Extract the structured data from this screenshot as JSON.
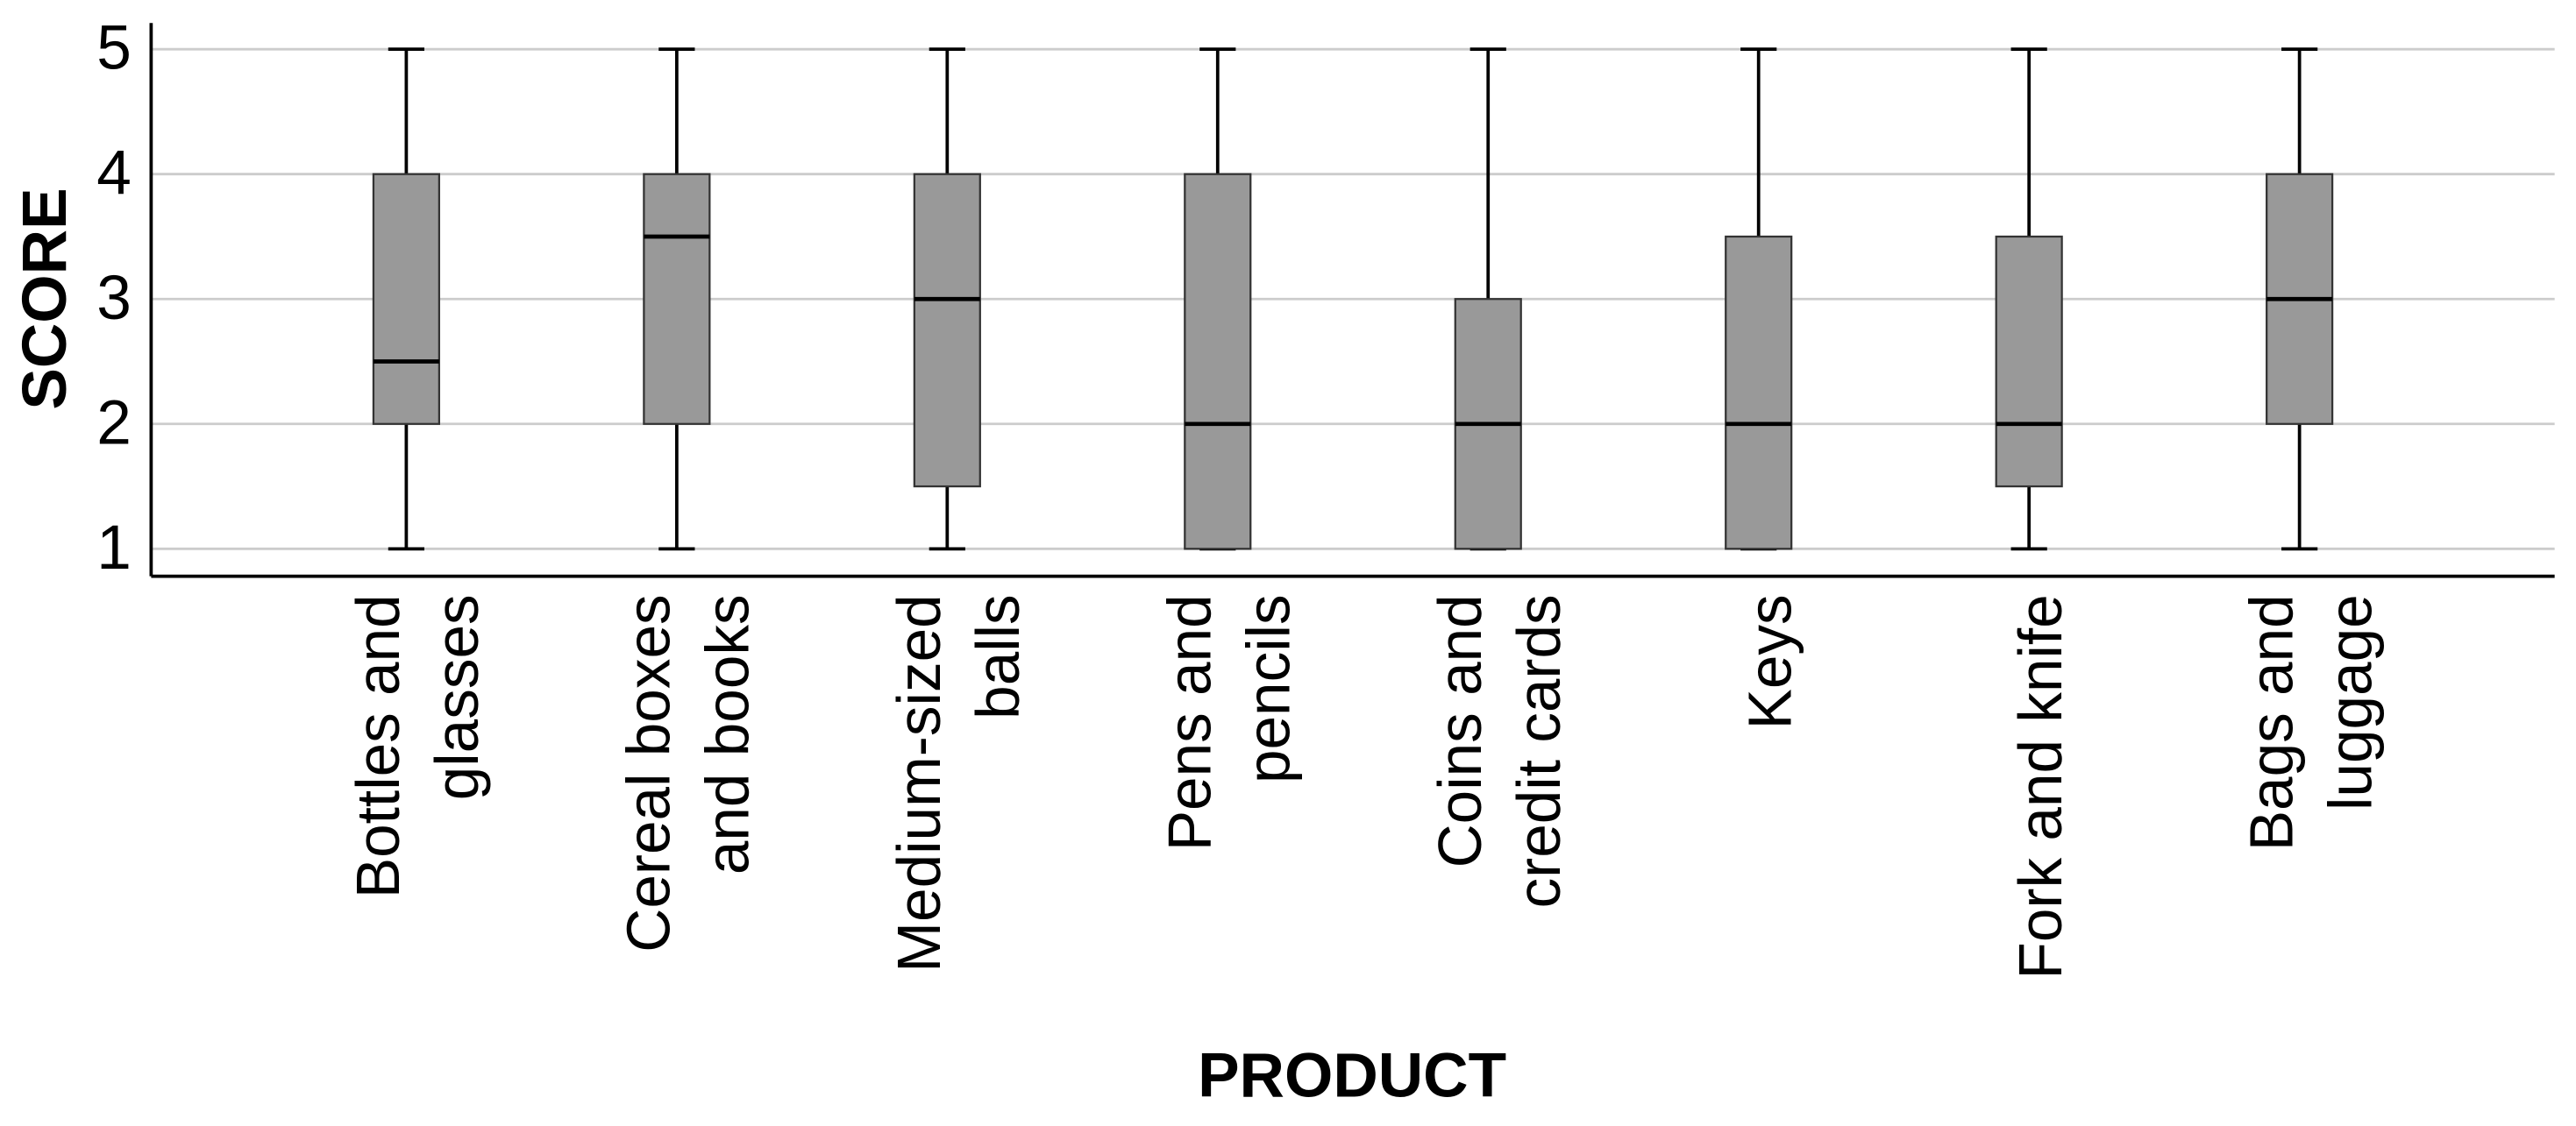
{
  "chart_data": {
    "type": "box",
    "categories": [
      "Bottles and\nglasses",
      "Cereal boxes\nand books",
      "Medium-sized\nballs",
      "Pens and\npencils",
      "Coins and\ncredit cards",
      "Keys",
      "Fork and knife",
      "Bags and\nluggage"
    ],
    "min": [
      1,
      1,
      1,
      1,
      1,
      1,
      1,
      1
    ],
    "q1": [
      2,
      2,
      1.5,
      1,
      1,
      1,
      1.5,
      2
    ],
    "median": [
      2.5,
      3.5,
      3,
      2,
      2,
      2,
      2,
      3
    ],
    "q3": [
      4,
      4,
      4,
      4,
      3,
      3.5,
      3.5,
      4
    ],
    "max": [
      5,
      5,
      5,
      5,
      5,
      5,
      5,
      5
    ],
    "color": "#999999",
    "ylabel": "SCORE",
    "xlabel": "PRODUCT",
    "ylim": [
      0.78,
      5.21
    ],
    "yticks": [
      1,
      2,
      3,
      4,
      5
    ],
    "grid": true
  }
}
